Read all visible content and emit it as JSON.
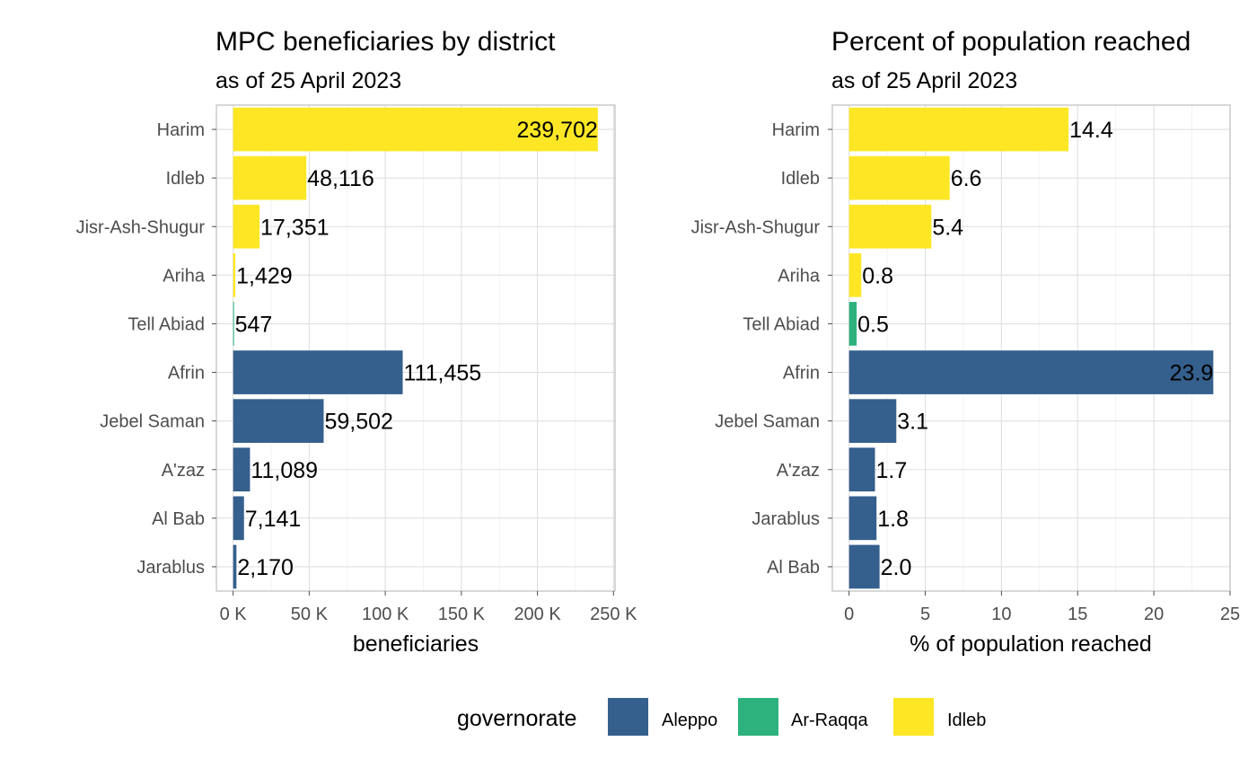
{
  "colors": {
    "Aleppo": "#355f8d",
    "Ar-Raqqa": "#2db27d",
    "Idleb": "#fde725"
  },
  "legend": {
    "title": "governorate",
    "entries": [
      "Aleppo",
      "Ar-Raqqa",
      "Idleb"
    ],
    "placement": "bottom"
  },
  "chart_data": [
    {
      "type": "bar",
      "orientation": "horizontal",
      "title": "MPC beneficiaries by district",
      "subtitle": "as of 25 April 2023",
      "xlabel": "beneficiaries",
      "ylabel": "",
      "xlim": [
        -11000,
        251000
      ],
      "xticks": [
        0,
        50000,
        100000,
        150000,
        200000,
        250000
      ],
      "xtick_labels": [
        "0 K",
        "50 K",
        "100 K",
        "150 K",
        "200 K",
        "250 K"
      ],
      "grid": true,
      "categories": [
        "Harim",
        "Idleb",
        "Jisr-Ash-Shugur",
        "Ariha",
        "Tell Abiad",
        "Afrin",
        "Jebel Saman",
        "A'zaz",
        "Al Bab",
        "Jarablus"
      ],
      "values": [
        239702,
        48116,
        17351,
        1429,
        547,
        111455,
        59502,
        11089,
        7141,
        2170
      ],
      "labels": [
        "239,702",
        "48,116",
        "17,351",
        "1,429",
        "547",
        "111,455",
        "59,502",
        "11,089",
        "7,141",
        "2,170"
      ],
      "governorate": [
        "Idleb",
        "Idleb",
        "Idleb",
        "Idleb",
        "Ar-Raqqa",
        "Aleppo",
        "Aleppo",
        "Aleppo",
        "Aleppo",
        "Aleppo"
      ]
    },
    {
      "type": "bar",
      "orientation": "horizontal",
      "title": "Percent of population reached",
      "subtitle": "as of 25 April 2023",
      "xlabel": "% of population reached",
      "ylabel": "",
      "xlim": [
        -1.1,
        25
      ],
      "xticks": [
        0,
        5,
        10,
        15,
        20,
        25
      ],
      "xtick_labels": [
        "0",
        "5",
        "10",
        "15",
        "20",
        "25"
      ],
      "grid": true,
      "categories": [
        "Harim",
        "Idleb",
        "Jisr-Ash-Shugur",
        "Ariha",
        "Tell Abiad",
        "Afrin",
        "Jebel Saman",
        "A'zaz",
        "Jarablus",
        "Al Bab"
      ],
      "values": [
        14.4,
        6.6,
        5.4,
        0.8,
        0.5,
        23.9,
        3.1,
        1.7,
        1.8,
        2.0
      ],
      "labels": [
        "14.4",
        "6.6",
        "5.4",
        "0.8",
        "0.5",
        "23.9",
        "3.1",
        "1.7",
        "1.8",
        "2.0"
      ],
      "governorate": [
        "Idleb",
        "Idleb",
        "Idleb",
        "Idleb",
        "Ar-Raqqa",
        "Aleppo",
        "Aleppo",
        "Aleppo",
        "Aleppo",
        "Aleppo"
      ]
    }
  ]
}
